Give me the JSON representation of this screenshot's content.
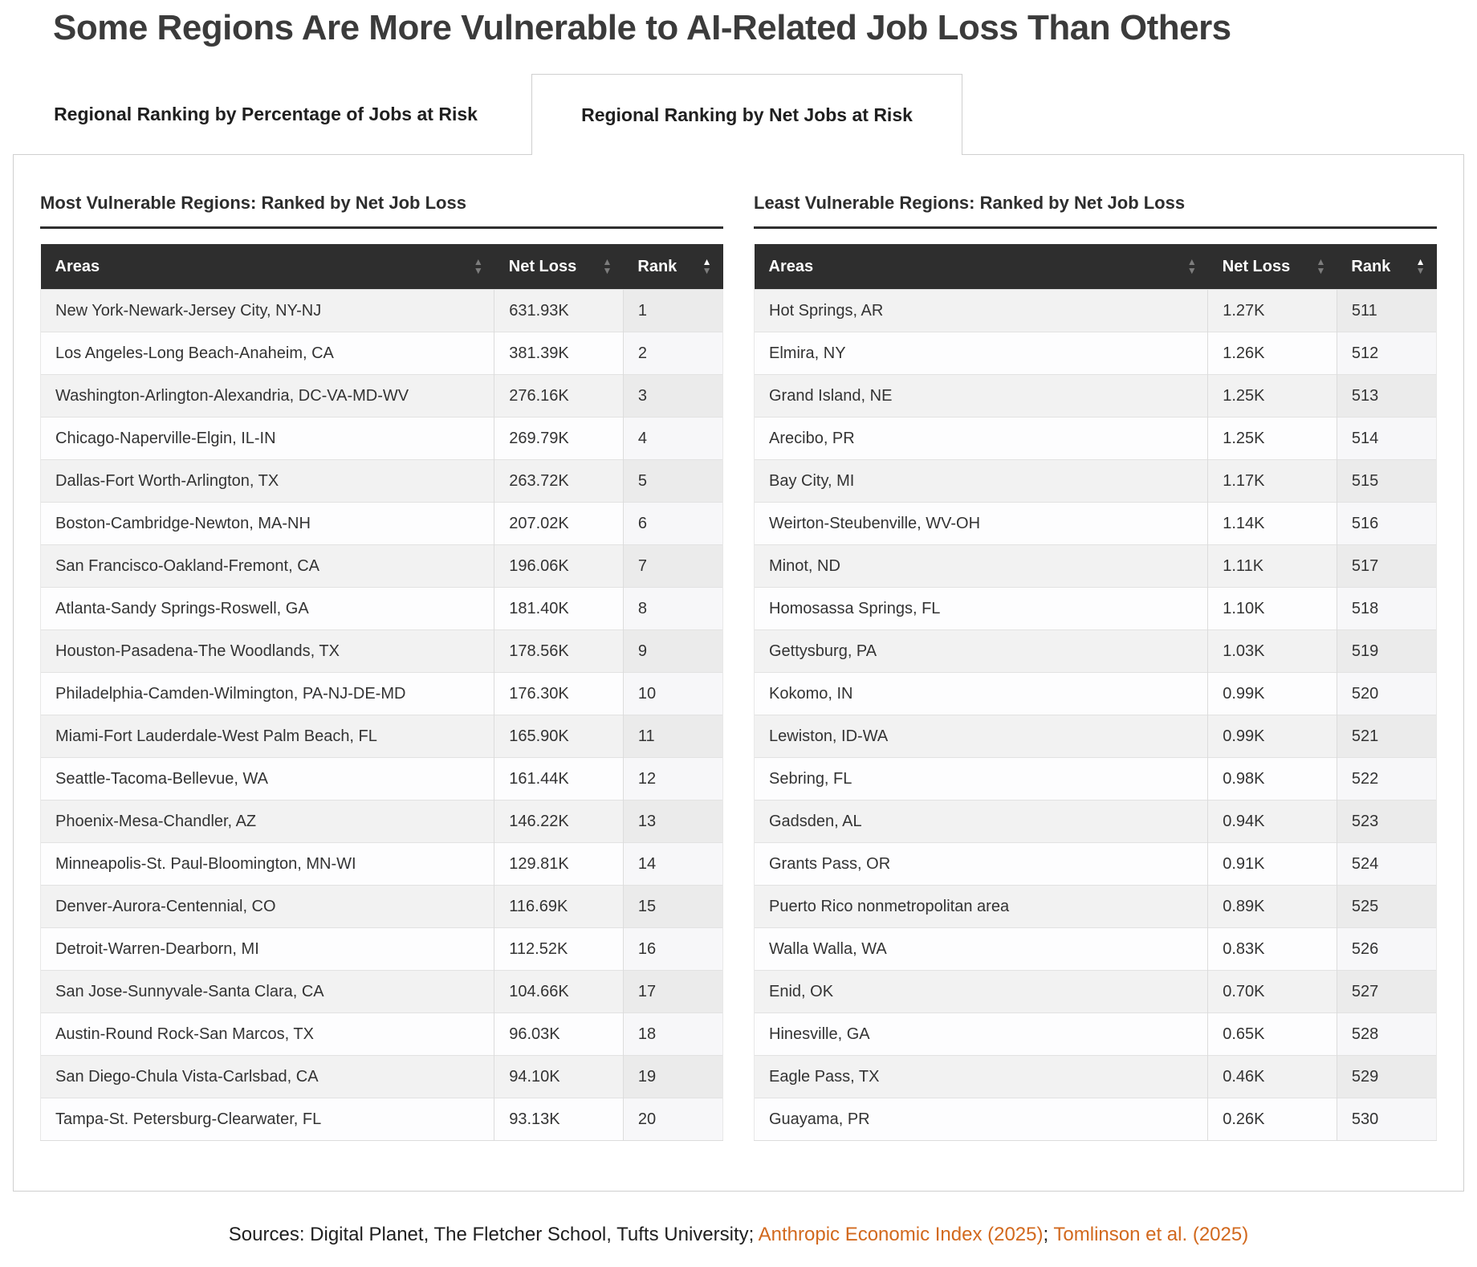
{
  "page": {
    "title": "Some Regions Are More Vulnerable to AI-Related Job Loss Than Others"
  },
  "tabs": [
    {
      "label": "Regional Ranking by Percentage of Jobs at Risk",
      "active": false
    },
    {
      "label": "Regional Ranking by Net Jobs at Risk",
      "active": true
    }
  ],
  "sort": {
    "column": "Rank",
    "direction": "ascending"
  },
  "sources": {
    "prefix": "Sources: Digital Planet, The Fletcher School, Tufts University; ",
    "link1": "Anthropic Economic Index (2025)",
    "separator": "; ",
    "link2": "Tomlinson et al. (2025)"
  },
  "colors": {
    "header_bg": "#2e2e2e",
    "stripe_row": "#f2f2f2",
    "plain_row": "#fdfdfe",
    "sorted_cell_striped": "#ebebeb",
    "sorted_cell_plain": "#f7f7f9",
    "link_orange": "#d2691e",
    "panel_border": "#cfcfcf",
    "title_text": "#3b3b3b"
  },
  "chart_data": [
    {
      "type": "table",
      "title": "Most Vulnerable Regions: Ranked by Net Job Loss",
      "columns": [
        "Areas",
        "Net Loss",
        "Rank"
      ],
      "sorted_by": "Rank",
      "sort_direction": "ascending",
      "rows": [
        [
          "New York-Newark-Jersey City, NY-NJ",
          "631.93K",
          "1"
        ],
        [
          "Los Angeles-Long Beach-Anaheim, CA",
          "381.39K",
          "2"
        ],
        [
          "Washington-Arlington-Alexandria, DC-VA-MD-WV",
          "276.16K",
          "3"
        ],
        [
          "Chicago-Naperville-Elgin, IL-IN",
          "269.79K",
          "4"
        ],
        [
          "Dallas-Fort Worth-Arlington, TX",
          "263.72K",
          "5"
        ],
        [
          "Boston-Cambridge-Newton, MA-NH",
          "207.02K",
          "6"
        ],
        [
          "San Francisco-Oakland-Fremont, CA",
          "196.06K",
          "7"
        ],
        [
          "Atlanta-Sandy Springs-Roswell, GA",
          "181.40K",
          "8"
        ],
        [
          "Houston-Pasadena-The Woodlands, TX",
          "178.56K",
          "9"
        ],
        [
          "Philadelphia-Camden-Wilmington, PA-NJ-DE-MD",
          "176.30K",
          "10"
        ],
        [
          "Miami-Fort Lauderdale-West Palm Beach, FL",
          "165.90K",
          "11"
        ],
        [
          "Seattle-Tacoma-Bellevue, WA",
          "161.44K",
          "12"
        ],
        [
          "Phoenix-Mesa-Chandler, AZ",
          "146.22K",
          "13"
        ],
        [
          "Minneapolis-St. Paul-Bloomington, MN-WI",
          "129.81K",
          "14"
        ],
        [
          "Denver-Aurora-Centennial, CO",
          "116.69K",
          "15"
        ],
        [
          "Detroit-Warren-Dearborn, MI",
          "112.52K",
          "16"
        ],
        [
          "San Jose-Sunnyvale-Santa Clara, CA",
          "104.66K",
          "17"
        ],
        [
          "Austin-Round Rock-San Marcos, TX",
          "96.03K",
          "18"
        ],
        [
          "San Diego-Chula Vista-Carlsbad, CA",
          "94.10K",
          "19"
        ],
        [
          "Tampa-St. Petersburg-Clearwater, FL",
          "93.13K",
          "20"
        ]
      ]
    },
    {
      "type": "table",
      "title": "Least Vulnerable Regions: Ranked by Net Job Loss",
      "columns": [
        "Areas",
        "Net Loss",
        "Rank"
      ],
      "sorted_by": "Rank",
      "sort_direction": "ascending",
      "rows": [
        [
          "Hot Springs, AR",
          "1.27K",
          "511"
        ],
        [
          "Elmira, NY",
          "1.26K",
          "512"
        ],
        [
          "Grand Island, NE",
          "1.25K",
          "513"
        ],
        [
          "Arecibo, PR",
          "1.25K",
          "514"
        ],
        [
          "Bay City, MI",
          "1.17K",
          "515"
        ],
        [
          "Weirton-Steubenville, WV-OH",
          "1.14K",
          "516"
        ],
        [
          "Minot, ND",
          "1.11K",
          "517"
        ],
        [
          "Homosassa Springs, FL",
          "1.10K",
          "518"
        ],
        [
          "Gettysburg, PA",
          "1.03K",
          "519"
        ],
        [
          "Kokomo, IN",
          "0.99K",
          "520"
        ],
        [
          "Lewiston, ID-WA",
          "0.99K",
          "521"
        ],
        [
          "Sebring, FL",
          "0.98K",
          "522"
        ],
        [
          "Gadsden, AL",
          "0.94K",
          "523"
        ],
        [
          "Grants Pass, OR",
          "0.91K",
          "524"
        ],
        [
          "Puerto Rico nonmetropolitan area",
          "0.89K",
          "525"
        ],
        [
          "Walla Walla, WA",
          "0.83K",
          "526"
        ],
        [
          "Enid, OK",
          "0.70K",
          "527"
        ],
        [
          "Hinesville, GA",
          "0.65K",
          "528"
        ],
        [
          "Eagle Pass, TX",
          "0.46K",
          "529"
        ],
        [
          "Guayama, PR",
          "0.26K",
          "530"
        ]
      ]
    }
  ]
}
